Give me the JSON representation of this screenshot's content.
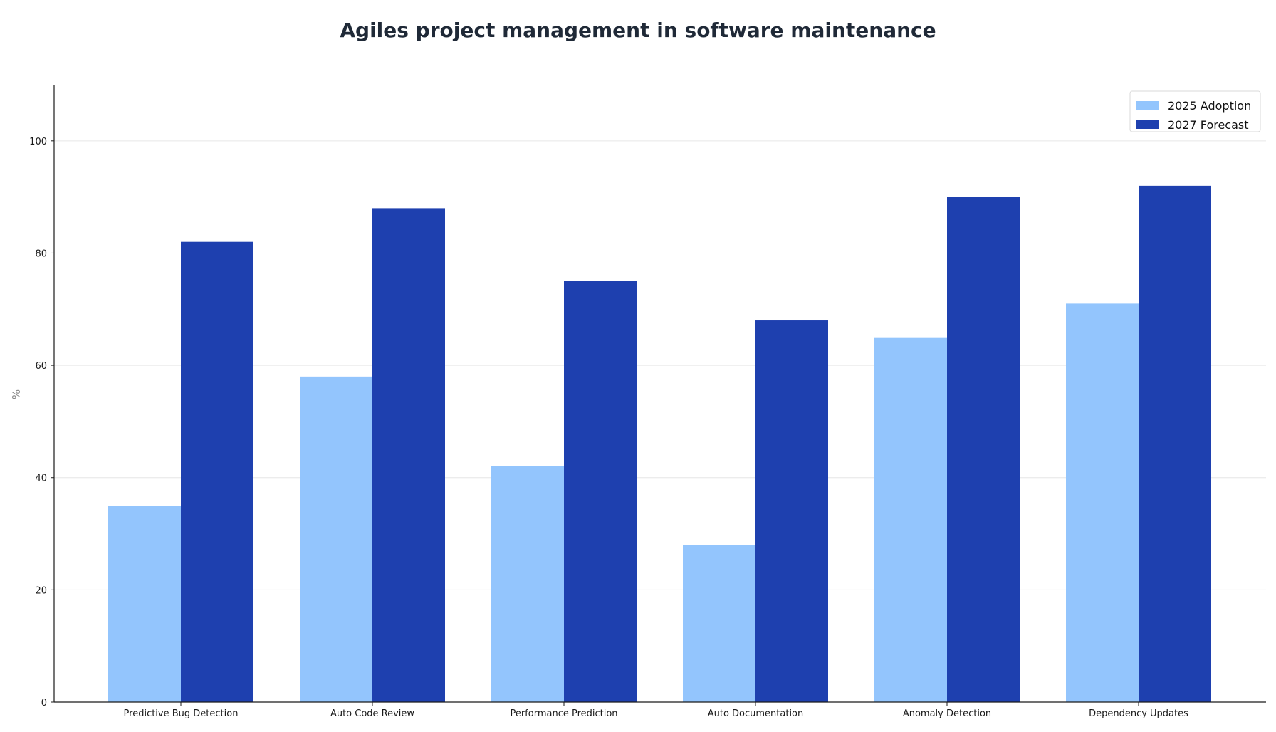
{
  "chart_data": {
    "type": "bar",
    "title": "Agiles project management in software maintenance",
    "xlabel": "",
    "ylabel": "%",
    "categories": [
      "Predictive Bug Detection",
      "Auto Code Review",
      "Performance Prediction",
      "Auto Documentation",
      "Anomaly Detection",
      "Dependency Updates"
    ],
    "series": [
      {
        "name": "2025 Adoption",
        "color": "#93c5fd",
        "values": [
          35,
          58,
          42,
          28,
          65,
          71
        ]
      },
      {
        "name": "2027 Forecast",
        "color": "#1e40af",
        "values": [
          82,
          88,
          75,
          68,
          90,
          92
        ]
      }
    ],
    "ylim": [
      0,
      110
    ],
    "yticks": [
      0,
      20,
      40,
      60,
      80,
      100
    ],
    "grid": true,
    "legend_position": "top-right"
  }
}
